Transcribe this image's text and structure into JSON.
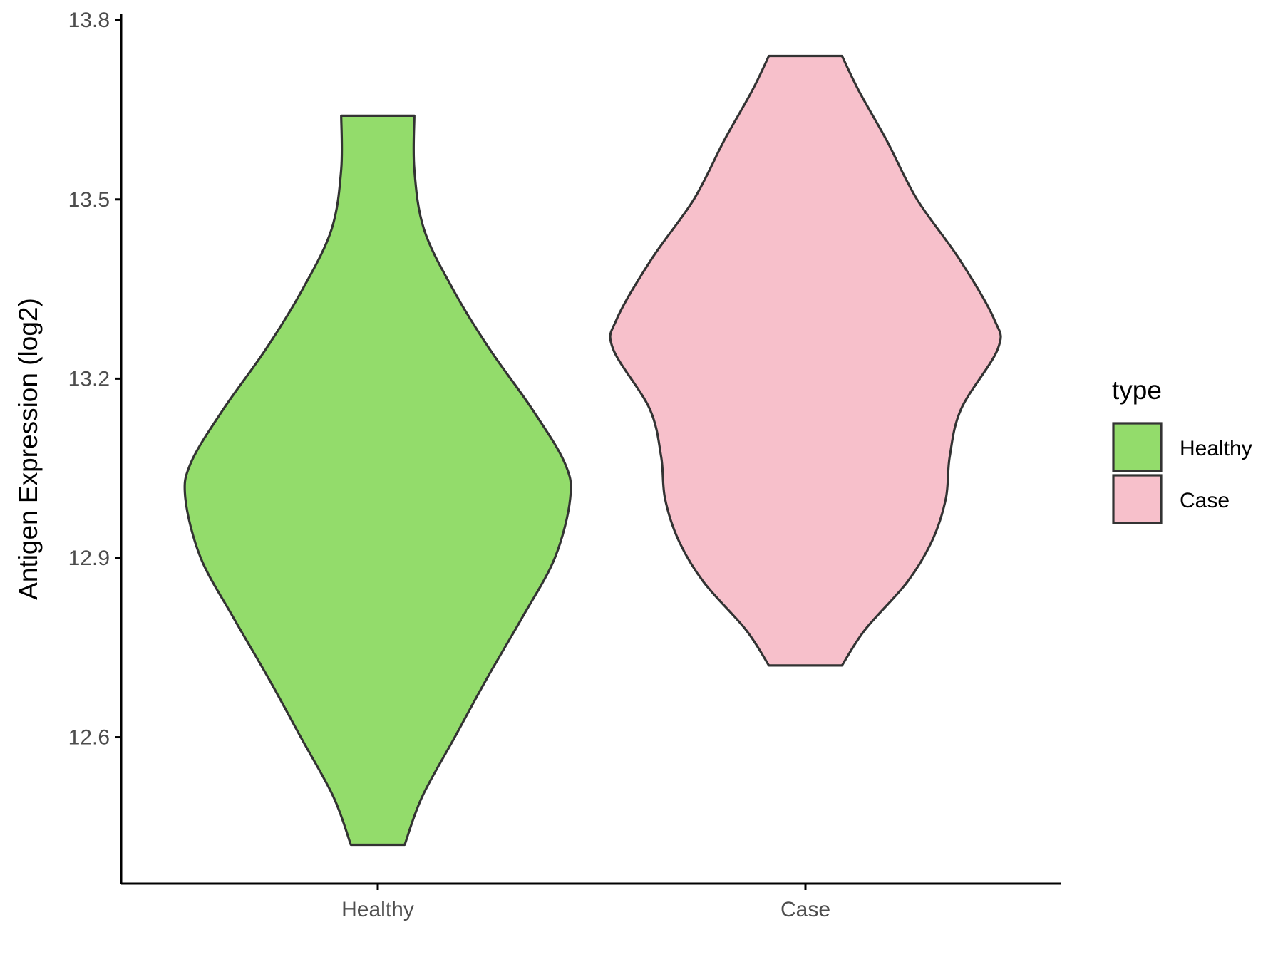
{
  "chart_data": {
    "type": "violin",
    "ylabel": "Antigen Expression (log2)",
    "xlabel": "",
    "ylim": [
      12.355,
      13.805
    ],
    "yticks": [
      12.6,
      12.9,
      13.2,
      13.5,
      13.8
    ],
    "ytick_labels": [
      "12.6",
      "12.9",
      "13.2",
      "13.5",
      "13.8"
    ],
    "categories": [
      "Healthy",
      "Case"
    ],
    "grid": false,
    "legend": {
      "title": "type",
      "position": "right",
      "entries": [
        {
          "label": "Healthy",
          "color": "#93DC6B"
        },
        {
          "label": "Case",
          "color": "#F7C0CB"
        }
      ]
    },
    "series": [
      {
        "name": "Healthy",
        "color": "#93DC6B",
        "range": [
          12.42,
          13.64
        ],
        "density_profile": [
          {
            "y": 12.42,
            "w": 0.14
          },
          {
            "y": 12.5,
            "w": 0.23
          },
          {
            "y": 12.6,
            "w": 0.4
          },
          {
            "y": 12.7,
            "w": 0.57
          },
          {
            "y": 12.8,
            "w": 0.75
          },
          {
            "y": 12.9,
            "w": 0.92
          },
          {
            "y": 13.0,
            "w": 1.0
          },
          {
            "y": 13.06,
            "w": 0.97
          },
          {
            "y": 13.15,
            "w": 0.8
          },
          {
            "y": 13.25,
            "w": 0.58
          },
          {
            "y": 13.35,
            "w": 0.39
          },
          {
            "y": 13.45,
            "w": 0.24
          },
          {
            "y": 13.55,
            "w": 0.19
          },
          {
            "y": 13.64,
            "w": 0.19
          }
        ]
      },
      {
        "name": "Case",
        "color": "#F7C0CB",
        "range": [
          12.72,
          13.74
        ],
        "density_profile": [
          {
            "y": 12.72,
            "w": 0.19
          },
          {
            "y": 12.78,
            "w": 0.31
          },
          {
            "y": 12.86,
            "w": 0.53
          },
          {
            "y": 12.93,
            "w": 0.66
          },
          {
            "y": 13.0,
            "w": 0.73
          },
          {
            "y": 13.07,
            "w": 0.75
          },
          {
            "y": 13.15,
            "w": 0.81
          },
          {
            "y": 13.25,
            "w": 1.0
          },
          {
            "y": 13.3,
            "w": 0.98
          },
          {
            "y": 13.4,
            "w": 0.8
          },
          {
            "y": 13.5,
            "w": 0.58
          },
          {
            "y": 13.6,
            "w": 0.42
          },
          {
            "y": 13.68,
            "w": 0.28
          },
          {
            "y": 13.74,
            "w": 0.19
          }
        ]
      }
    ]
  },
  "colors": {
    "outline": "#333333",
    "axis": "#000000",
    "tick_text": "#4d4d4d"
  }
}
